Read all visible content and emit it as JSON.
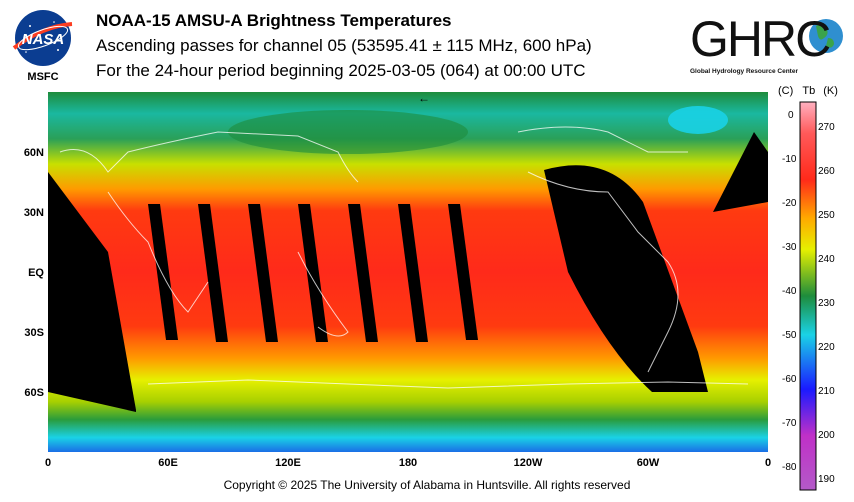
{
  "header": {
    "title": "NOAA-15 AMSU-A Brightness Temperatures",
    "subtitle_1": "Ascending passes for channel 05 (53595.41 ± 115 MHz, 600 hPa)",
    "subtitle_2": "For the 24-hour period beginning 2025-03-05 (064) at 00:00 UTC"
  },
  "logos": {
    "nasa": {
      "wordmark": "NASA",
      "caption": "MSFC"
    },
    "ghrc": {
      "wordmark": "GHRC",
      "caption": "Global Hydrology Resource Center"
    }
  },
  "map": {
    "lat_labels": [
      "60N",
      "30N",
      "EQ",
      "30S",
      "60S"
    ],
    "lon_labels": [
      "0",
      "60E",
      "120E",
      "180",
      "120W",
      "60W",
      "0"
    ],
    "dateline_marker": "←"
  },
  "colorbar": {
    "header_celsius": "(C)",
    "header_tb": "Tb",
    "header_kelvin": "(K)",
    "celsius_ticks": [
      "0",
      "-10",
      "-20",
      "-30",
      "-40",
      "-50",
      "-60",
      "-70",
      "-80"
    ],
    "kelvin_ticks": [
      "270",
      "260",
      "250",
      "240",
      "230",
      "220",
      "210",
      "200",
      "190"
    ],
    "colors": {
      "magenta": "#b35ac8",
      "blue": "#1a1aff",
      "cyan": "#1ad2e6",
      "green": "#1e8c3c",
      "yellow": "#e6f000",
      "red": "#ff2a1a",
      "pink": "#ffb0c0"
    }
  },
  "footer": {
    "copyright": "Copyright © 2025 The University of Alabama in Huntsville.  All rights reserved"
  }
}
